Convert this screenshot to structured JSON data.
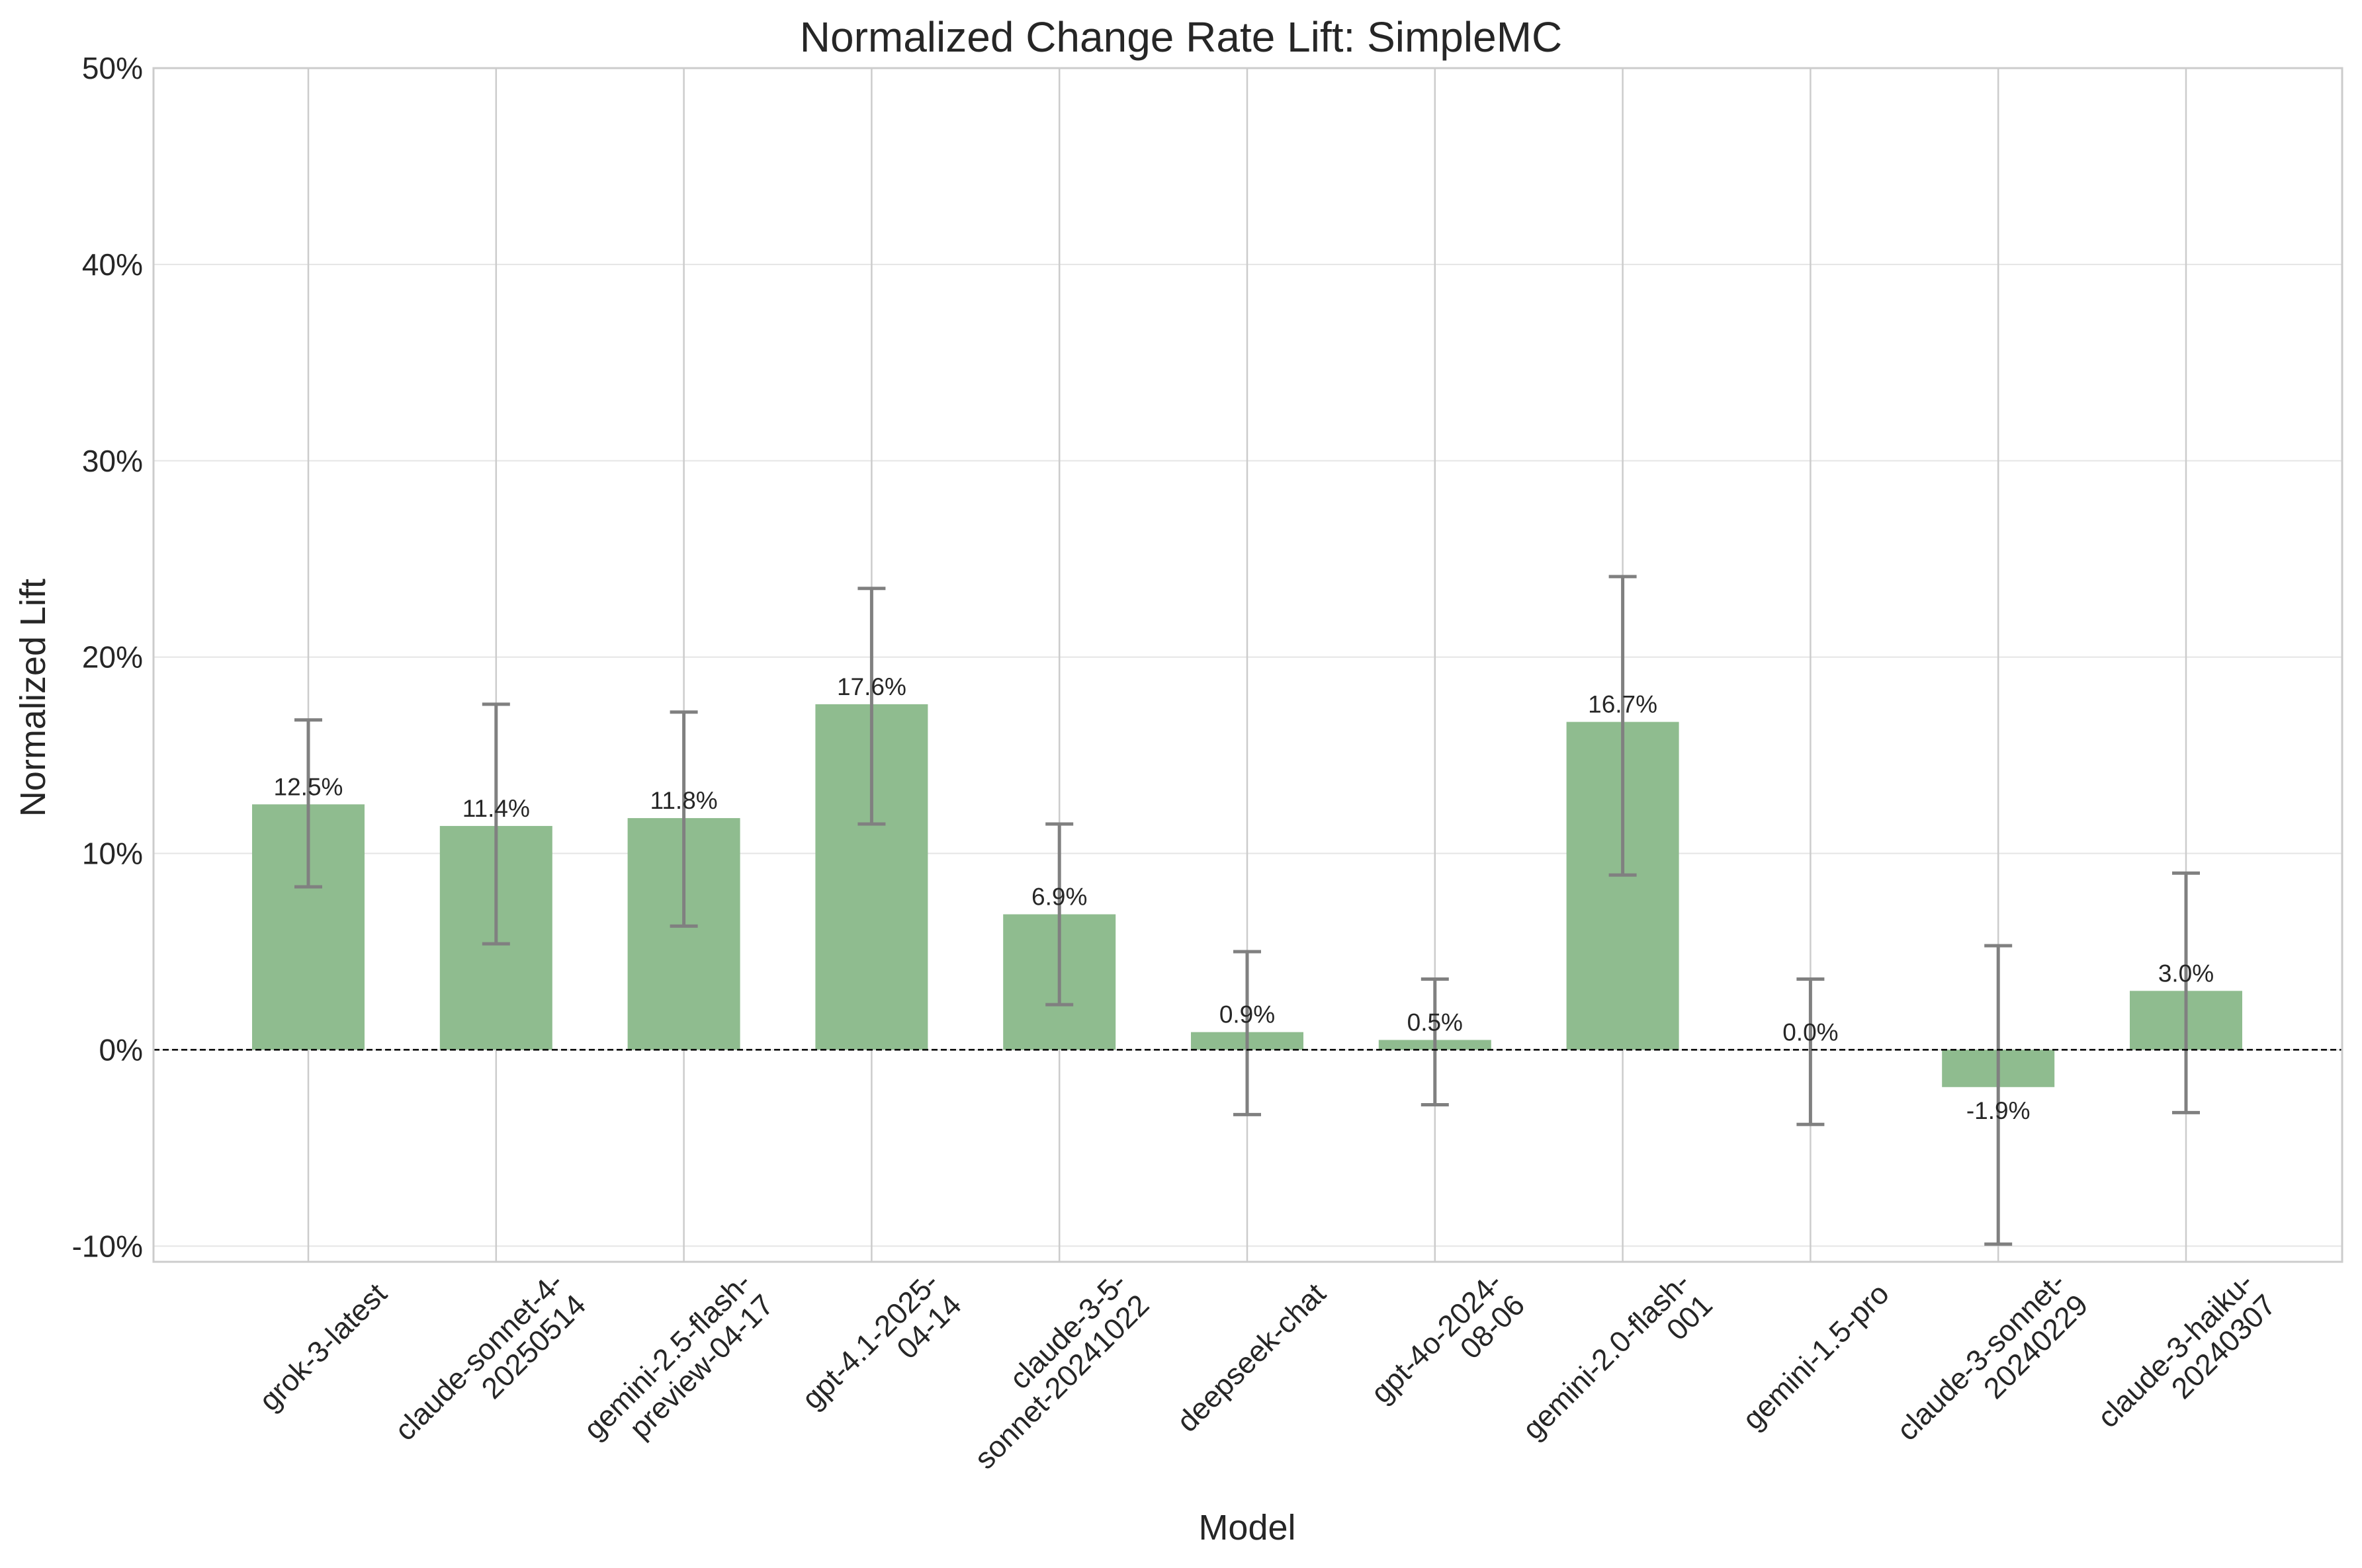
{
  "chart_data": {
    "type": "bar",
    "title": "Normalized Change Rate Lift: SimpleMC",
    "xlabel": "Model",
    "ylabel": "Normalized Lift",
    "ylim": [
      -10.8,
      50
    ],
    "yticks": [
      -10,
      0,
      10,
      20,
      30,
      40,
      50
    ],
    "ytick_labels": [
      "-10%",
      "0%",
      "10%",
      "20%",
      "30%",
      "40%",
      "50%"
    ],
    "grid": true,
    "reference_line": 0,
    "categories": [
      [
        "grok-3-latest"
      ],
      [
        "claude-sonnet-4-",
        "20250514"
      ],
      [
        "gemini-2.5-flash-",
        "preview-04-17"
      ],
      [
        "gpt-4.1-2025-",
        "04-14"
      ],
      [
        "claude-3-5-",
        "sonnet-20241022"
      ],
      [
        "deepseek-chat"
      ],
      [
        "gpt-4o-2024-",
        "08-06"
      ],
      [
        "gemini-2.0-flash-",
        "001"
      ],
      [
        "gemini-1.5-pro"
      ],
      [
        "claude-3-sonnet-",
        "20240229"
      ],
      [
        "claude-3-haiku-",
        "20240307"
      ]
    ],
    "values": [
      12.5,
      11.4,
      11.8,
      17.6,
      6.9,
      0.9,
      0.5,
      16.7,
      0.0,
      -1.9,
      3.0
    ],
    "value_labels": [
      "12.5%",
      "11.4%",
      "11.8%",
      "17.6%",
      "6.9%",
      "0.9%",
      "0.5%",
      "16.7%",
      "0.0%",
      "-1.9%",
      "3.0%"
    ],
    "error_low": [
      8.3,
      5.4,
      6.3,
      11.5,
      2.3,
      -3.3,
      -2.8,
      8.9,
      -3.8,
      -9.9,
      -3.2
    ],
    "error_high": [
      16.8,
      17.6,
      17.2,
      23.5,
      11.5,
      5.0,
      3.6,
      24.1,
      3.6,
      5.3,
      9.0
    ],
    "colors": {
      "bar": "#8fbc8f",
      "error_bar": "#808080",
      "grid": "#e5e5e5",
      "vgrid": "#cccccc",
      "spine": "#cccccc",
      "zero_line": "#000000"
    }
  }
}
